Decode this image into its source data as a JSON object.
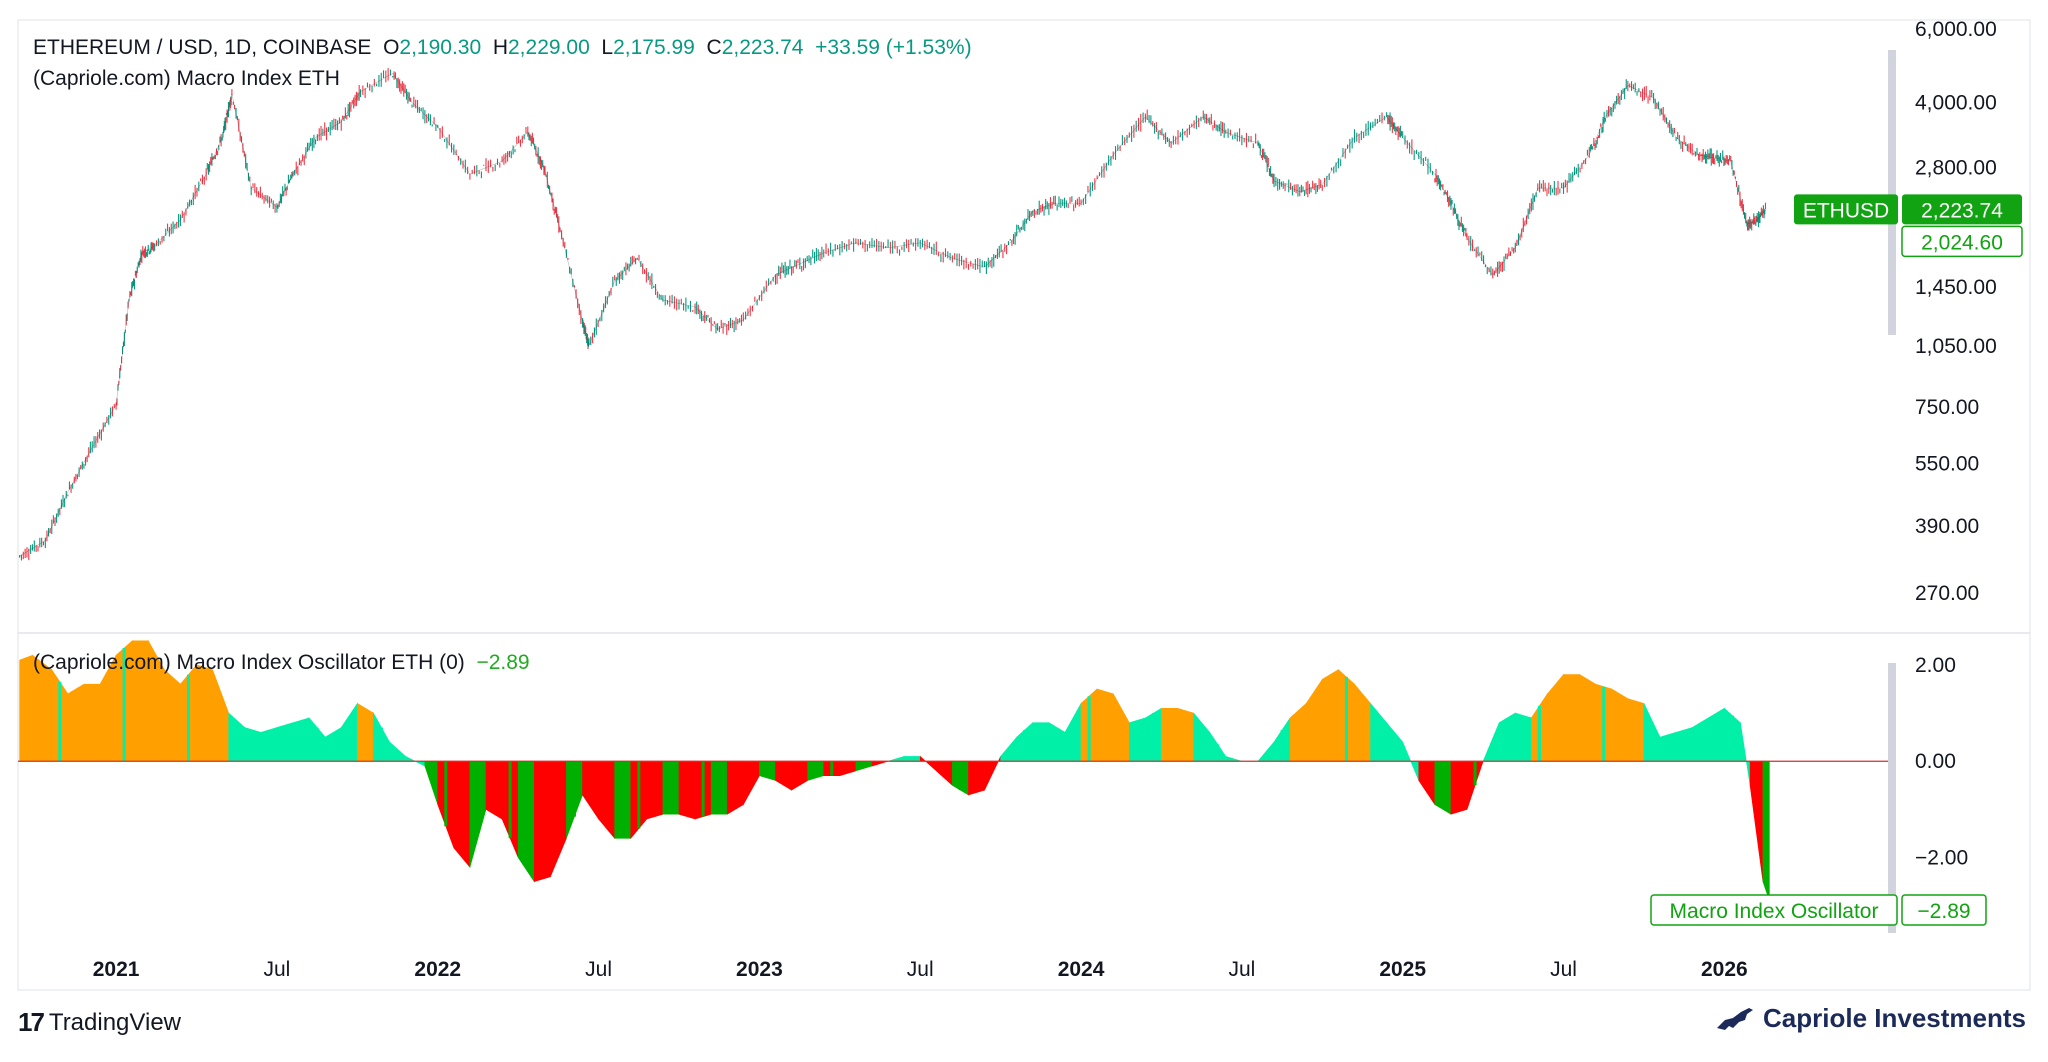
{
  "header": {
    "symbol": "ETHEREUM / USD, 1D, COINBASE",
    "o_label": "O",
    "o_value": "2,190.30",
    "h_label": "H",
    "h_value": "2,229.00",
    "l_label": "L",
    "l_value": "2,175.99",
    "c_label": "C",
    "c_value": "2,223.74",
    "change": "+33.59 (+1.53%)",
    "indicator": "(Capriole.com) Macro Index ETH"
  },
  "oscillator_header": {
    "title": "(Capriole.com) Macro Index Oscillator ETH (0)",
    "value": "−2.89"
  },
  "footer": {
    "brand_left": "TradingView",
    "brand_right": "Capriole Investments"
  },
  "colors": {
    "up": "#089981",
    "down": "#f23645",
    "osc_high": "#ff9f00",
    "osc_pos": "#00f0a8",
    "osc_neg_red": "#ff0000",
    "osc_neg_green": "#00b000",
    "tag_green": "#11a311"
  },
  "chart_data": [
    {
      "type": "line",
      "title": "ETHEREUM / USD, 1D, COINBASE",
      "scale": "log",
      "ylim": [
        220,
        6300
      ],
      "y_ticks": [
        6000,
        4000,
        2800,
        1450,
        1050,
        750,
        550,
        390,
        270
      ],
      "y_tick_labels": [
        "6,000.00",
        "4,000.00",
        "2,800.00",
        "1,450.00",
        "1,050.00",
        "750.00",
        "550.00",
        "390.00",
        "270.00"
      ],
      "x_tick_labels": [
        "2021",
        "Jul",
        "2022",
        "Jul",
        "2023",
        "Jul",
        "2024",
        "Jul",
        "2025",
        "Jul",
        "2026"
      ],
      "x_tick_pos": [
        2021.0,
        2021.5,
        2022.0,
        2022.5,
        2023.0,
        2023.5,
        2024.0,
        2024.5,
        2025.0,
        2025.5,
        2026.0
      ],
      "xlim": [
        2020.695,
        2026.515
      ],
      "series": [
        {
          "name": "ETHUSD",
          "x": [
            2020.7,
            2020.78,
            2020.85,
            2020.92,
            2021.0,
            2021.04,
            2021.08,
            2021.12,
            2021.2,
            2021.28,
            2021.33,
            2021.36,
            2021.42,
            2021.5,
            2021.55,
            2021.62,
            2021.7,
            2021.76,
            2021.86,
            2021.92,
            2022.0,
            2022.1,
            2022.2,
            2022.28,
            2022.33,
            2022.38,
            2022.45,
            2022.47,
            2022.55,
            2022.62,
            2022.7,
            2022.8,
            2022.87,
            2022.95,
            2023.05,
            2023.12,
            2023.2,
            2023.3,
            2023.4,
            2023.5,
            2023.6,
            2023.7,
            2023.78,
            2023.85,
            2023.92,
            2024.0,
            2024.1,
            2024.2,
            2024.28,
            2024.38,
            2024.45,
            2024.55,
            2024.6,
            2024.68,
            2024.75,
            2024.85,
            2024.95,
            2025.0,
            2025.1,
            2025.15,
            2025.2,
            2025.28,
            2025.35,
            2025.42,
            2025.5,
            2025.58,
            2025.63,
            2025.7,
            2025.78,
            2025.85,
            2025.92,
            2025.97,
            2026.02,
            2026.07,
            2026.1,
            2026.13
          ],
          "values": [
            330,
            360,
            470,
            590,
            760,
            1350,
            1750,
            1820,
            2100,
            2700,
            3300,
            4200,
            2500,
            2250,
            2700,
            3300,
            3600,
            4250,
            4700,
            4000,
            3500,
            2700,
            2900,
            3400,
            2800,
            2000,
            1200,
            1050,
            1500,
            1700,
            1350,
            1300,
            1150,
            1210,
            1550,
            1640,
            1750,
            1850,
            1800,
            1850,
            1700,
            1620,
            1850,
            2200,
            2300,
            2300,
            3000,
            3700,
            3200,
            3700,
            3400,
            3200,
            2600,
            2450,
            2550,
            3300,
            3700,
            3300,
            2700,
            2300,
            1900,
            1550,
            1800,
            2500,
            2500,
            3000,
            3700,
            4400,
            4100,
            3300,
            3000,
            2950,
            2900,
            2050,
            2090,
            2223.74
          ]
        }
      ],
      "last_price_label": "ETHUSD",
      "last_price": "2,223.74",
      "secondary_price": "2,024.60"
    },
    {
      "type": "area",
      "title": "(Capriole.com) Macro Index Oscillator ETH (0)",
      "ylim": [
        -3.4,
        2.6
      ],
      "y_ticks": [
        2,
        0,
        -2
      ],
      "y_tick_labels": [
        "2.00",
        "0.00",
        "−2.00"
      ],
      "series": [
        {
          "name": "Macro Index Oscillator",
          "x": [
            2020.7,
            2020.74,
            2020.8,
            2020.85,
            2020.9,
            2020.95,
            2021.0,
            2021.05,
            2021.1,
            2021.15,
            2021.2,
            2021.25,
            2021.3,
            2021.35,
            2021.4,
            2021.45,
            2021.5,
            2021.55,
            2021.6,
            2021.65,
            2021.7,
            2021.75,
            2021.8,
            2021.85,
            2021.9,
            2021.96,
            2022.0,
            2022.05,
            2022.1,
            2022.15,
            2022.2,
            2022.25,
            2022.3,
            2022.35,
            2022.4,
            2022.45,
            2022.5,
            2022.55,
            2022.6,
            2022.65,
            2022.7,
            2022.75,
            2022.8,
            2022.85,
            2022.9,
            2022.95,
            2023.0,
            2023.05,
            2023.1,
            2023.15,
            2023.2,
            2023.25,
            2023.3,
            2023.35,
            2023.4,
            2023.45,
            2023.5,
            2023.55,
            2023.6,
            2023.65,
            2023.7,
            2023.75,
            2023.8,
            2023.85,
            2023.9,
            2023.95,
            2024.0,
            2024.05,
            2024.1,
            2024.15,
            2024.2,
            2024.25,
            2024.3,
            2024.35,
            2024.4,
            2024.45,
            2024.5,
            2024.55,
            2024.6,
            2024.65,
            2024.7,
            2024.75,
            2024.8,
            2024.85,
            2024.9,
            2024.95,
            2025.0,
            2025.05,
            2025.1,
            2025.15,
            2025.2,
            2025.25,
            2025.3,
            2025.35,
            2025.4,
            2025.45,
            2025.5,
            2025.55,
            2025.6,
            2025.65,
            2025.7,
            2025.75,
            2025.8,
            2025.85,
            2025.9,
            2025.95,
            2026.0,
            2026.05,
            2026.08,
            2026.12,
            2026.14
          ],
          "values": [
            2.1,
            2.2,
            1.9,
            1.4,
            1.6,
            1.6,
            2.2,
            2.5,
            2.5,
            1.9,
            1.6,
            2.0,
            1.9,
            1.0,
            0.7,
            0.6,
            0.7,
            0.8,
            0.9,
            0.5,
            0.7,
            1.2,
            1.0,
            0.4,
            0.1,
            -0.1,
            -0.9,
            -1.8,
            -2.2,
            -1.0,
            -1.2,
            -2.0,
            -2.5,
            -2.4,
            -1.6,
            -0.7,
            -1.2,
            -1.6,
            -1.6,
            -1.2,
            -1.1,
            -1.1,
            -1.2,
            -1.1,
            -1.1,
            -0.9,
            -0.3,
            -0.4,
            -0.6,
            -0.4,
            -0.3,
            -0.3,
            -0.2,
            -0.1,
            0.0,
            0.1,
            0.1,
            -0.2,
            -0.5,
            -0.7,
            -0.6,
            0.1,
            0.5,
            0.8,
            0.8,
            0.6,
            1.2,
            1.5,
            1.4,
            0.8,
            0.9,
            1.1,
            1.1,
            1.0,
            0.6,
            0.1,
            0.0,
            0.0,
            0.4,
            0.9,
            1.2,
            1.7,
            1.9,
            1.6,
            1.2,
            0.8,
            0.4,
            -0.4,
            -0.9,
            -1.1,
            -1.0,
            0.0,
            0.8,
            1.0,
            0.9,
            1.4,
            1.8,
            1.8,
            1.6,
            1.5,
            1.3,
            1.2,
            0.5,
            0.6,
            0.7,
            0.9,
            1.1,
            0.8,
            -0.5,
            -2.5,
            -2.89
          ]
        }
      ],
      "label": "Macro Index Oscillator",
      "last_value": "−2.89"
    }
  ]
}
